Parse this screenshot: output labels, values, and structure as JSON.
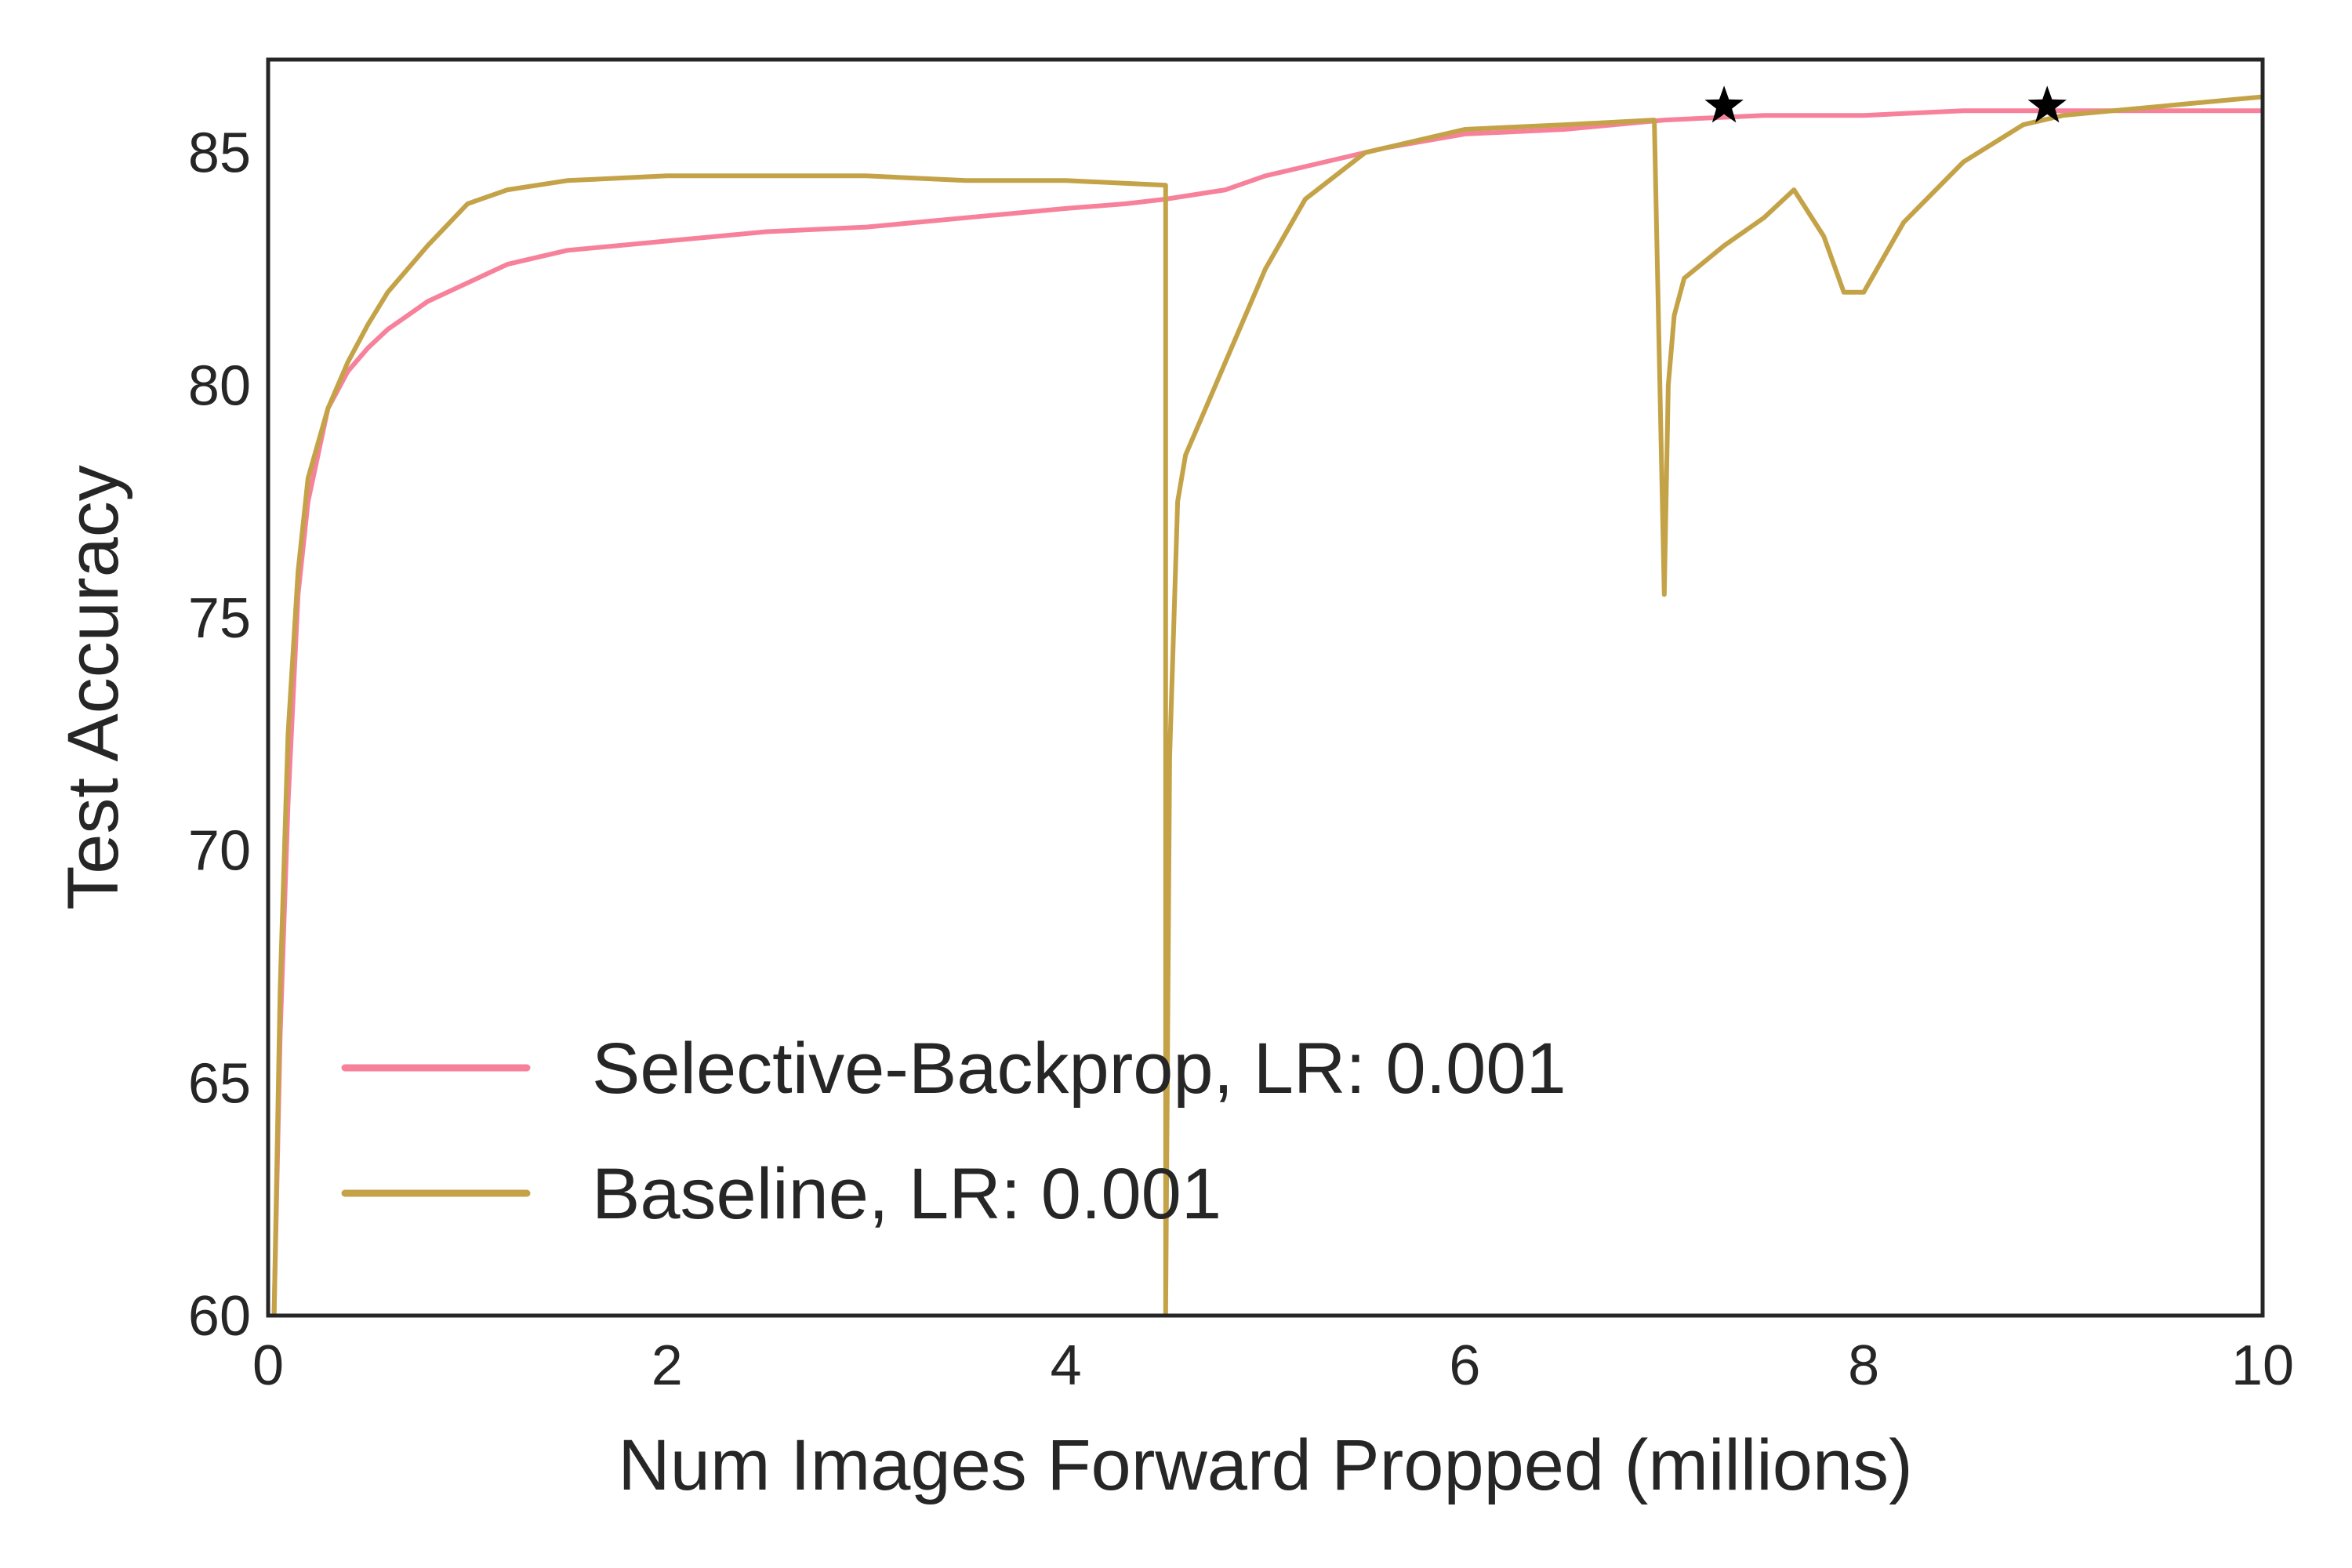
{
  "chart_data": {
    "type": "line",
    "title": "",
    "xlabel": "Num Images Forward Propped (millions)",
    "ylabel": "Test Accuracy",
    "xlim": [
      0,
      10
    ],
    "ylim": [
      60,
      87
    ],
    "xticks": [
      0,
      2,
      4,
      6,
      8,
      10
    ],
    "xtick_labels": [
      "0",
      "2",
      "4",
      "6",
      "8",
      "10"
    ],
    "yticks": [
      60,
      65,
      70,
      75,
      80,
      85
    ],
    "ytick_labels": [
      "60",
      "65",
      "70",
      "75",
      "80",
      "85"
    ],
    "grid": false,
    "legend": {
      "placement": "lower-left"
    },
    "series": [
      {
        "name": "Selective-Backprop, LR: 0.001",
        "color": "#f7819a",
        "x": [
          0.03,
          0.06,
          0.1,
          0.15,
          0.2,
          0.3,
          0.4,
          0.5,
          0.6,
          0.8,
          1.0,
          1.2,
          1.5,
          2.0,
          2.5,
          3.0,
          3.5,
          4.0,
          4.3,
          4.5,
          4.8,
          5.0,
          5.3,
          5.6,
          6.0,
          6.5,
          7.0,
          7.5,
          8.0,
          8.5,
          9.0,
          9.5,
          10.0
        ],
        "y": [
          60.0,
          66.0,
          71.0,
          75.5,
          77.5,
          79.5,
          80.3,
          80.8,
          81.2,
          81.8,
          82.2,
          82.6,
          82.9,
          83.1,
          83.3,
          83.4,
          83.6,
          83.8,
          83.9,
          84.0,
          84.2,
          84.5,
          84.8,
          85.1,
          85.4,
          85.5,
          85.7,
          85.8,
          85.8,
          85.9,
          85.9,
          85.9,
          85.9
        ]
      },
      {
        "name": "Baseline, LR: 0.001",
        "color": "#c4a348",
        "x": [
          0.03,
          0.06,
          0.1,
          0.15,
          0.2,
          0.3,
          0.4,
          0.5,
          0.6,
          0.8,
          1.0,
          1.2,
          1.5,
          2.0,
          2.5,
          3.0,
          3.5,
          4.0,
          4.5,
          4.5,
          4.52,
          4.56,
          4.6,
          4.7,
          4.8,
          5.0,
          5.2,
          5.5,
          6.0,
          6.5,
          6.95,
          7.0,
          7.02,
          7.05,
          7.1,
          7.3,
          7.5,
          7.65,
          7.8,
          7.9,
          8.0,
          8.2,
          8.5,
          8.8,
          9.0,
          9.5,
          10.0
        ],
        "y": [
          60.0,
          67.0,
          72.5,
          76.0,
          78.0,
          79.5,
          80.5,
          81.3,
          82.0,
          83.0,
          83.9,
          84.2,
          84.4,
          84.5,
          84.5,
          84.5,
          84.4,
          84.4,
          84.3,
          60.0,
          72.0,
          77.5,
          78.5,
          79.5,
          80.5,
          82.5,
          84.0,
          85.0,
          85.5,
          85.6,
          85.7,
          75.5,
          80.0,
          81.5,
          82.3,
          83.0,
          83.6,
          84.2,
          83.2,
          82.0,
          82.0,
          83.5,
          84.8,
          85.6,
          85.8,
          86.0,
          86.2
        ]
      }
    ],
    "markers": [
      {
        "x": 7.3,
        "y": 86.0,
        "shape": "star",
        "color": "#000000"
      },
      {
        "x": 8.92,
        "y": 86.0,
        "shape": "star",
        "color": "#000000"
      }
    ]
  }
}
